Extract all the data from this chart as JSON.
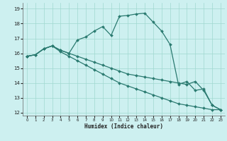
{
  "xlabel": "Humidex (Indice chaleur)",
  "ylabel": "",
  "background_color": "#cdf0f0",
  "grid_color": "#a0d8d0",
  "line_color": "#2a7a70",
  "xlim": [
    -0.5,
    23.5
  ],
  "ylim": [
    11.8,
    19.4
  ],
  "yticks": [
    12,
    13,
    14,
    15,
    16,
    17,
    18,
    19
  ],
  "xticks": [
    0,
    1,
    2,
    3,
    4,
    5,
    6,
    7,
    8,
    9,
    10,
    11,
    12,
    13,
    14,
    15,
    16,
    17,
    18,
    19,
    20,
    21,
    22,
    23
  ],
  "series": [
    {
      "x": [
        0,
        1,
        2,
        3,
        4,
        5,
        6,
        7,
        8,
        9,
        10,
        11,
        12,
        13,
        14,
        15,
        16,
        17,
        18,
        19,
        20,
        21,
        22,
        23
      ],
      "y": [
        15.8,
        15.9,
        16.3,
        16.5,
        16.2,
        16.0,
        16.9,
        17.1,
        17.5,
        17.8,
        17.2,
        18.5,
        18.55,
        18.65,
        18.7,
        18.1,
        17.5,
        16.6,
        13.9,
        14.1,
        13.5,
        13.6,
        12.5,
        12.2
      ]
    },
    {
      "x": [
        0,
        1,
        2,
        3,
        4,
        5,
        6,
        7,
        8,
        9,
        10,
        11,
        12,
        13,
        14,
        15,
        16,
        17,
        18,
        19,
        20,
        21,
        22,
        23
      ],
      "y": [
        15.8,
        15.9,
        16.3,
        16.5,
        16.2,
        16.0,
        15.8,
        15.6,
        15.4,
        15.2,
        15.0,
        14.8,
        14.6,
        14.5,
        14.4,
        14.3,
        14.2,
        14.1,
        14.0,
        13.9,
        14.1,
        13.5,
        12.5,
        12.2
      ]
    },
    {
      "x": [
        0,
        1,
        2,
        3,
        4,
        5,
        6,
        7,
        8,
        9,
        10,
        11,
        12,
        13,
        14,
        15,
        16,
        17,
        18,
        19,
        20,
        21,
        22,
        23
      ],
      "y": [
        15.8,
        15.9,
        16.3,
        16.5,
        16.1,
        15.8,
        15.5,
        15.2,
        14.9,
        14.6,
        14.3,
        14.0,
        13.8,
        13.6,
        13.4,
        13.2,
        13.0,
        12.8,
        12.6,
        12.5,
        12.4,
        12.3,
        12.2,
        12.2
      ]
    }
  ]
}
